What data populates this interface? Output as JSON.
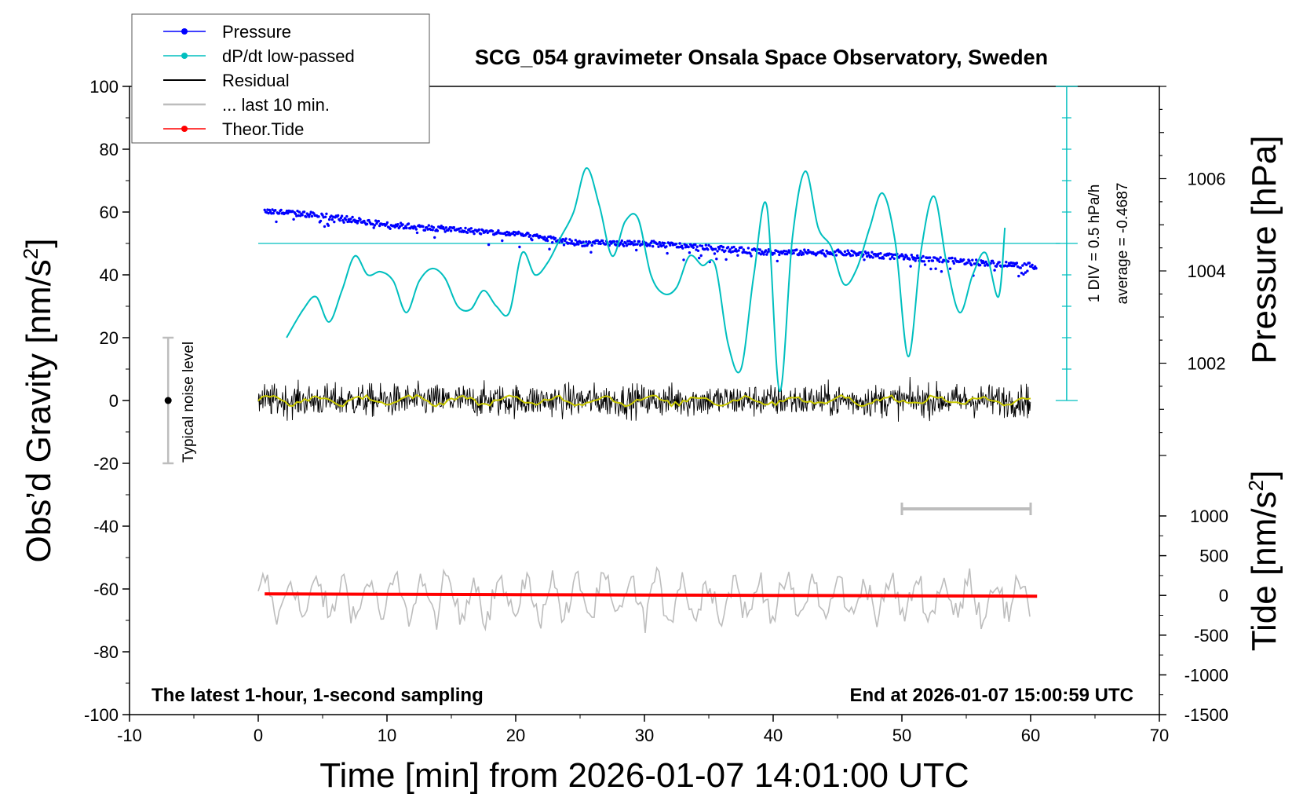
{
  "chart_data": {
    "type": "line",
    "title": "SCG_054 gravimeter Onsala Space Observatory, Sweden",
    "xlabel": "Time [min] from 2026-01-07 14:01:00 UTC",
    "ylabel_left": "Obs’d Gravity [nm/s²]",
    "ylabel_left_parts": {
      "main": "Obs’d Gravity [nm/s",
      "sup": "2",
      "end": "]"
    },
    "ylabel_right_top": "Pressure [hPa]",
    "ylabel_right_bottom": "Tide [nm/s²]",
    "ylabel_right_bottom_parts": {
      "main": "Tide [nm/s",
      "sup": "2",
      "end": "]"
    },
    "xlim": [
      -10,
      70
    ],
    "ylim": [
      -100,
      100
    ],
    "xticks": [
      -10,
      0,
      10,
      20,
      30,
      40,
      50,
      60,
      70
    ],
    "yticks": [
      -100,
      -80,
      -60,
      -40,
      -20,
      0,
      20,
      40,
      60,
      80,
      100
    ],
    "pressure_axis": {
      "ticks": [
        1002,
        1004,
        1006
      ],
      "range": [
        1000,
        1008
      ]
    },
    "tide_axis": {
      "ticks": [
        -1500,
        -1000,
        -500,
        0,
        500,
        1000
      ],
      "range": [
        -1500,
        1000
      ]
    },
    "note_left": "The latest 1-hour, 1-second sampling",
    "note_right": "End at 2026-01-07 15:00:59 UTC",
    "noise_label": "Typical noise level",
    "dpdt_scale_label": "1 DIV = 0.5 hPa/h",
    "dpdt_average_label": "average = -0.4687",
    "legend": [
      {
        "name": "Pressure",
        "color": "#0000ff",
        "marker": true
      },
      {
        "name": "dP/dt low-passed",
        "color": "#00bfbf",
        "marker": true
      },
      {
        "name": "Residual",
        "color": "#000000",
        "marker": false
      },
      {
        "name": "... last 10 min.",
        "color": "#bdbdbd",
        "marker": false
      },
      {
        "name": "Theor.Tide",
        "color": "#ff0000",
        "marker": true
      }
    ],
    "series": [
      {
        "name": "Pressure",
        "color": "#0000ff",
        "axis": "pressure",
        "x": [
          0.5,
          5,
          10,
          15,
          20,
          25,
          30,
          35,
          40,
          45,
          50,
          55,
          60.5
        ],
        "values": [
          1005.3,
          1005.2,
          1005.0,
          1004.9,
          1004.8,
          1004.6,
          1004.6,
          1004.5,
          1004.4,
          1004.4,
          1004.3,
          1004.2,
          1004.1
        ]
      },
      {
        "name": "dP/dt low-passed",
        "color": "#00bfbf",
        "axis": "gravity",
        "x": [
          2.2,
          3.5,
          4.5,
          5.5,
          6.5,
          7.5,
          8.5,
          9.5,
          10.5,
          11.5,
          12.5,
          13.5,
          14.5,
          15.5,
          16.5,
          17.5,
          18.5,
          19.5,
          20.5,
          21.5,
          22.5,
          23.5,
          24.5,
          25.5,
          26.5,
          27.5,
          28.5,
          29.5,
          30.5,
          31.5,
          32.5,
          33.5,
          34.5,
          35.5,
          36.5,
          37.5,
          38.5,
          39.5,
          40.5,
          41.5,
          42.5,
          43.5,
          44.5,
          45.5,
          46.5,
          47.5,
          48.5,
          49.5,
          50.5,
          51.5,
          52.5,
          53.5,
          54.5,
          55.5,
          56.5,
          57.5,
          58
        ],
        "values": [
          20,
          29,
          33,
          25,
          35,
          46,
          40,
          41,
          38,
          28,
          38,
          42,
          39,
          30,
          29,
          35,
          30,
          28,
          47,
          40,
          44,
          52,
          60,
          74,
          62,
          46,
          57,
          58,
          40,
          34,
          36,
          46,
          43,
          43,
          18,
          10,
          40,
          62,
          3,
          52,
          73,
          55,
          49,
          37,
          42,
          55,
          66,
          50,
          14,
          48,
          65,
          43,
          28,
          40,
          47,
          33,
          55
        ]
      },
      {
        "name": "Residual",
        "color": "#000000",
        "axis": "gravity",
        "x": [
          0,
          10,
          20,
          30,
          40,
          50,
          60
        ],
        "values": [
          0,
          0,
          0,
          0,
          0,
          0,
          0
        ],
        "noise_range": [
          -18,
          21
        ]
      },
      {
        "name": "... last 10 min.",
        "color": "#bdbdbd",
        "axis": "gravity",
        "x": [
          0,
          60
        ],
        "values": [
          -63,
          -63
        ],
        "range": [
          -82,
          -49
        ]
      },
      {
        "name": "Theor.Tide",
        "color": "#ff0000",
        "axis": "tide",
        "x": [
          0.5,
          10,
          20,
          30,
          40,
          50,
          60.5
        ],
        "values": [
          20,
          15,
          10,
          5,
          0,
          -5,
          -10
        ]
      }
    ],
    "noise_level_bar": {
      "x": -7,
      "center": 0,
      "range": [
        -20,
        20
      ]
    },
    "last10_marker": {
      "x": [
        50,
        60
      ]
    }
  }
}
